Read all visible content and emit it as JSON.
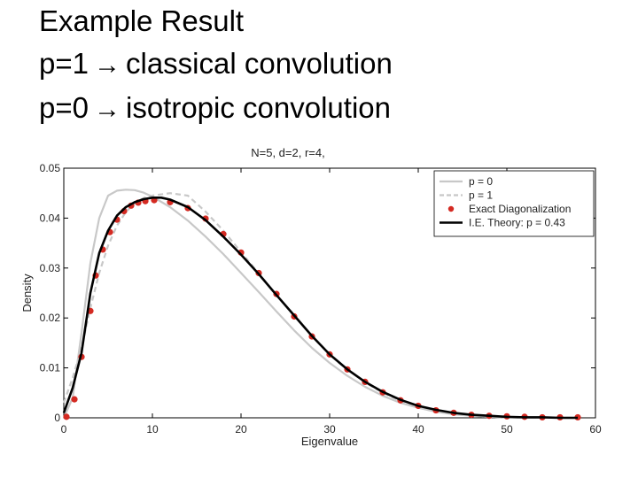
{
  "slide": {
    "title": "Example Result",
    "line1": {
      "prefix": "p=1",
      "arrow": "→",
      "text": "classical convolution"
    },
    "line2": {
      "prefix": "p=0",
      "arrow": "→",
      "text": "isotropic convolution"
    }
  },
  "chart_data": {
    "type": "line",
    "title": "N=5, d=2, r=4,",
    "xlabel": "Eigenvalue",
    "ylabel": "Density",
    "xlim": [
      0,
      60
    ],
    "ylim": [
      0,
      0.05
    ],
    "xticks": [
      0,
      10,
      20,
      30,
      40,
      50,
      60
    ],
    "yticks": [
      0,
      0.01,
      0.02,
      0.03,
      0.04,
      0.05
    ],
    "ytick_labels": [
      "0",
      "0.01",
      "0.02",
      "0.03",
      "0.04",
      "0.05"
    ],
    "legend_position": "top-right",
    "series": [
      {
        "name": "p = 0",
        "style": "solid",
        "color": "#c8c8c8",
        "x": [
          0,
          1,
          2,
          3,
          4,
          5,
          6,
          7,
          8,
          9,
          10,
          12,
          14,
          16,
          18,
          20,
          22,
          24,
          26,
          28,
          30,
          32,
          34,
          36,
          38,
          40,
          42,
          44,
          46,
          48,
          50,
          52,
          54,
          56,
          58
        ],
        "y": [
          0,
          0.004,
          0.017,
          0.031,
          0.04,
          0.0445,
          0.0455,
          0.0457,
          0.0456,
          0.0451,
          0.0443,
          0.0422,
          0.0395,
          0.0363,
          0.0328,
          0.029,
          0.0252,
          0.0213,
          0.0175,
          0.014,
          0.011,
          0.0084,
          0.0062,
          0.0044,
          0.003,
          0.002,
          0.0012,
          0.0007,
          0.0004,
          0.0002,
          0.0001,
          5e-05,
          2e-05,
          1e-05,
          0
        ]
      },
      {
        "name": "p = 1",
        "style": "dashed",
        "color": "#c8c8c8",
        "x": [
          0,
          1,
          2,
          3,
          4,
          5,
          6,
          7,
          8,
          9,
          10,
          12,
          14,
          16,
          18,
          20,
          22,
          24,
          26,
          28,
          30,
          32,
          34,
          36,
          38,
          40,
          42,
          44,
          46,
          48,
          50,
          52,
          54,
          56,
          58
        ],
        "y": [
          0.003,
          0.008,
          0.014,
          0.022,
          0.029,
          0.0345,
          0.0385,
          0.0412,
          0.043,
          0.044,
          0.0445,
          0.045,
          0.0445,
          0.0413,
          0.0375,
          0.0332,
          0.0289,
          0.0246,
          0.0204,
          0.0164,
          0.0128,
          0.0097,
          0.0071,
          0.005,
          0.0034,
          0.0022,
          0.0013,
          0.0008,
          0.0004,
          0.0002,
          0.0001,
          5e-05,
          2e-05,
          1e-05,
          0
        ]
      },
      {
        "name": "Exact Diagonalization",
        "style": "markers",
        "color": "#d42a22",
        "x": [
          0.3,
          1.2,
          2,
          3,
          3.6,
          4.4,
          5.2,
          6,
          6.8,
          7.6,
          8.4,
          9.2,
          10.2,
          12,
          14,
          16,
          18,
          20,
          22,
          24,
          26,
          28,
          30,
          32,
          34,
          36,
          38,
          40,
          42,
          44,
          46,
          48,
          50,
          52,
          54,
          56,
          58
        ],
        "y": [
          0.0002,
          0.0037,
          0.0122,
          0.0214,
          0.0285,
          0.0337,
          0.0372,
          0.0397,
          0.0414,
          0.0425,
          0.0431,
          0.0434,
          0.0436,
          0.0432,
          0.042,
          0.0399,
          0.0368,
          0.0331,
          0.029,
          0.0248,
          0.0203,
          0.0163,
          0.0127,
          0.0097,
          0.0072,
          0.0051,
          0.0035,
          0.0024,
          0.0015,
          0.001,
          0.0006,
          0.0004,
          0.0003,
          0.0002,
          0.0001,
          0.0001,
          0.0001
        ]
      },
      {
        "name": "I.E. Theory: p = 0.43",
        "style": "solid-bold",
        "color": "#000000",
        "x": [
          0,
          1,
          2,
          3,
          4,
          5,
          6,
          7,
          8,
          9,
          10,
          11,
          12,
          14,
          16,
          18,
          20,
          22,
          24,
          26,
          28,
          30,
          32,
          34,
          36,
          38,
          40,
          42,
          44,
          46,
          48,
          50,
          52,
          54,
          56,
          58
        ],
        "y": [
          0.001,
          0.006,
          0.013,
          0.025,
          0.033,
          0.0375,
          0.0405,
          0.0422,
          0.0432,
          0.0438,
          0.0441,
          0.0441,
          0.0437,
          0.0422,
          0.0396,
          0.0363,
          0.0327,
          0.0288,
          0.0246,
          0.0205,
          0.0164,
          0.0127,
          0.0097,
          0.0072,
          0.0052,
          0.0036,
          0.0024,
          0.0016,
          0.001,
          0.0006,
          0.0004,
          0.0002,
          0.0001,
          0.0001,
          0,
          0
        ]
      }
    ]
  }
}
